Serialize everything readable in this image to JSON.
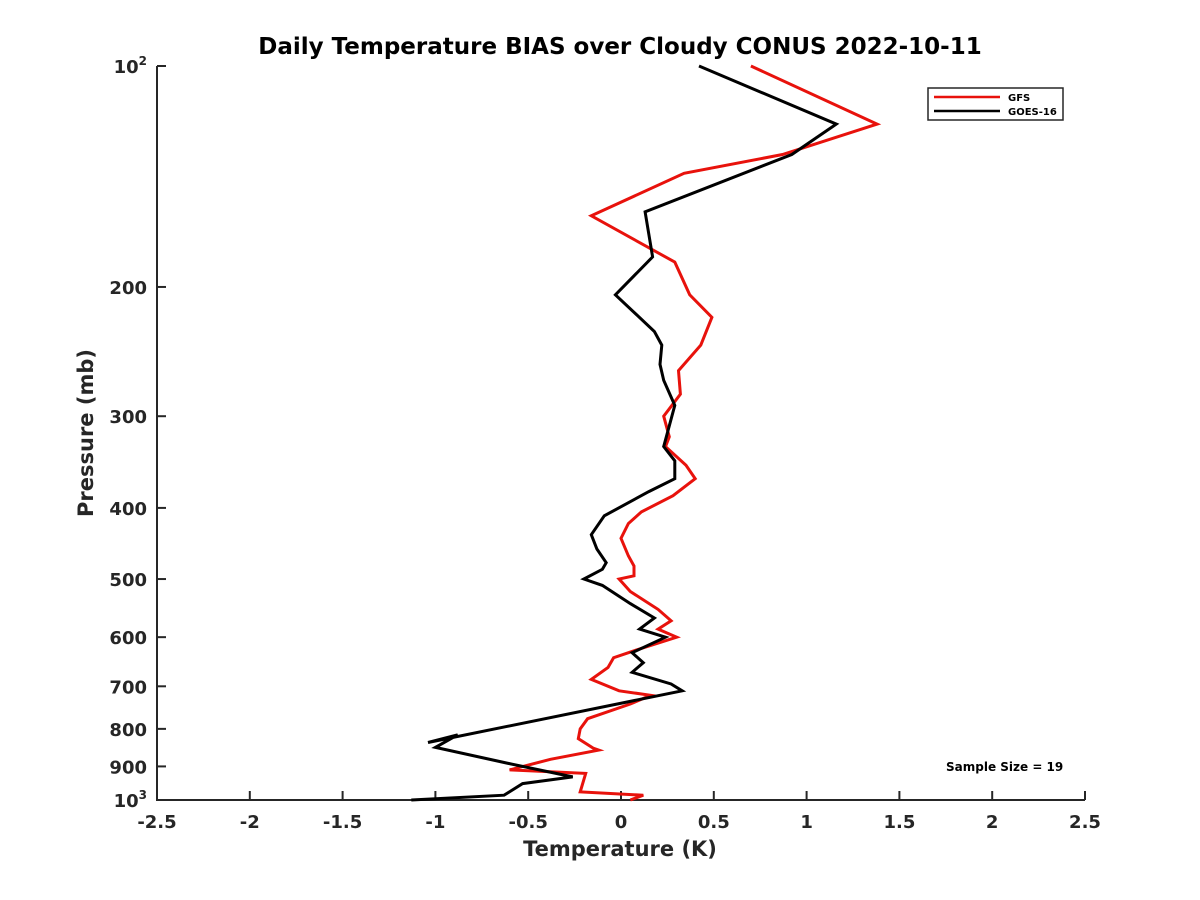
{
  "chart_data": {
    "type": "line",
    "title": "Daily Temperature BIAS over Cloudy CONUS 2022-10-11",
    "xlabel": "Temperature (K)",
    "ylabel": "Pressure (mb)",
    "xlim": [
      -2.5,
      2.5
    ],
    "ylim": [
      1000,
      100
    ],
    "y_scale": "log",
    "x_ticks": [
      "-2.5",
      "-2",
      "-1.5",
      "-1",
      "-0.5",
      "0",
      "0.5",
      "1",
      "1.5",
      "2",
      "2.5"
    ],
    "y_ticks": [
      {
        "value": 100,
        "base": "10",
        "exp": "2"
      },
      {
        "value": 200,
        "label": "200"
      },
      {
        "value": 300,
        "label": "300"
      },
      {
        "value": 400,
        "label": "400"
      },
      {
        "value": 500,
        "label": "500"
      },
      {
        "value": 600,
        "label": "600"
      },
      {
        "value": 700,
        "label": "700"
      },
      {
        "value": 800,
        "label": "800"
      },
      {
        "value": 900,
        "label": "900"
      },
      {
        "value": 1000,
        "base": "10",
        "exp": "3"
      }
    ],
    "legend_position": "top-right",
    "grid": false,
    "annotation": "Sample Size = 19",
    "series": [
      {
        "name": "GFS",
        "color": "#e8120c",
        "points": [
          {
            "x": 0.7,
            "y": 100
          },
          {
            "x": 1.38,
            "y": 120
          },
          {
            "x": 0.87,
            "y": 132
          },
          {
            "x": 0.34,
            "y": 140
          },
          {
            "x": -0.16,
            "y": 160
          },
          {
            "x": 0.29,
            "y": 185
          },
          {
            "x": 0.37,
            "y": 205
          },
          {
            "x": 0.49,
            "y": 220
          },
          {
            "x": 0.43,
            "y": 240
          },
          {
            "x": 0.31,
            "y": 260
          },
          {
            "x": 0.32,
            "y": 280
          },
          {
            "x": 0.23,
            "y": 300
          },
          {
            "x": 0.26,
            "y": 320
          },
          {
            "x": 0.24,
            "y": 330
          },
          {
            "x": 0.35,
            "y": 350
          },
          {
            "x": 0.4,
            "y": 365
          },
          {
            "x": 0.28,
            "y": 385
          },
          {
            "x": 0.11,
            "y": 405
          },
          {
            "x": 0.04,
            "y": 420
          },
          {
            "x": 0.0,
            "y": 440
          },
          {
            "x": 0.04,
            "y": 465
          },
          {
            "x": 0.07,
            "y": 480
          },
          {
            "x": 0.07,
            "y": 495
          },
          {
            "x": -0.01,
            "y": 500
          },
          {
            "x": 0.05,
            "y": 520
          },
          {
            "x": 0.2,
            "y": 550
          },
          {
            "x": 0.27,
            "y": 570
          },
          {
            "x": 0.2,
            "y": 585
          },
          {
            "x": 0.3,
            "y": 600
          },
          {
            "x": 0.08,
            "y": 625
          },
          {
            "x": -0.04,
            "y": 640
          },
          {
            "x": -0.07,
            "y": 660
          },
          {
            "x": -0.16,
            "y": 685
          },
          {
            "x": -0.01,
            "y": 710
          },
          {
            "x": 0.16,
            "y": 720
          },
          {
            "x": 0.05,
            "y": 740
          },
          {
            "x": -0.18,
            "y": 775
          },
          {
            "x": -0.22,
            "y": 800
          },
          {
            "x": -0.23,
            "y": 825
          },
          {
            "x": -0.15,
            "y": 850
          },
          {
            "x": -0.12,
            "y": 855
          },
          {
            "x": -0.38,
            "y": 880
          },
          {
            "x": -0.6,
            "y": 910
          },
          {
            "x": -0.19,
            "y": 920
          },
          {
            "x": -0.22,
            "y": 975
          },
          {
            "x": 0.12,
            "y": 985
          },
          {
            "x": 0.05,
            "y": 1000
          }
        ]
      },
      {
        "name": "GOES-16",
        "color": "#000000",
        "points": [
          {
            "x": 0.42,
            "y": 100
          },
          {
            "x": 1.16,
            "y": 120
          },
          {
            "x": 0.92,
            "y": 132
          },
          {
            "x": 0.13,
            "y": 158
          },
          {
            "x": 0.17,
            "y": 182
          },
          {
            "x": -0.03,
            "y": 205
          },
          {
            "x": 0.18,
            "y": 230
          },
          {
            "x": 0.22,
            "y": 240
          },
          {
            "x": 0.21,
            "y": 255
          },
          {
            "x": 0.23,
            "y": 268
          },
          {
            "x": 0.29,
            "y": 290
          },
          {
            "x": 0.23,
            "y": 330
          },
          {
            "x": 0.29,
            "y": 345
          },
          {
            "x": 0.29,
            "y": 365
          },
          {
            "x": 0.15,
            "y": 380
          },
          {
            "x": -0.09,
            "y": 410
          },
          {
            "x": -0.16,
            "y": 435
          },
          {
            "x": -0.13,
            "y": 455
          },
          {
            "x": -0.08,
            "y": 475
          },
          {
            "x": -0.1,
            "y": 485
          },
          {
            "x": -0.2,
            "y": 500
          },
          {
            "x": -0.1,
            "y": 510
          },
          {
            "x": 0.05,
            "y": 540
          },
          {
            "x": 0.18,
            "y": 565
          },
          {
            "x": 0.1,
            "y": 585
          },
          {
            "x": 0.24,
            "y": 600
          },
          {
            "x": 0.06,
            "y": 630
          },
          {
            "x": 0.12,
            "y": 650
          },
          {
            "x": 0.06,
            "y": 670
          },
          {
            "x": 0.27,
            "y": 695
          },
          {
            "x": 0.33,
            "y": 710
          },
          {
            "x": -1.04,
            "y": 835
          },
          {
            "x": -0.88,
            "y": 815
          },
          {
            "x": -1.0,
            "y": 848
          },
          {
            "x": -0.62,
            "y": 890
          },
          {
            "x": -0.26,
            "y": 930
          },
          {
            "x": -0.53,
            "y": 950
          },
          {
            "x": -0.63,
            "y": 985
          },
          {
            "x": -1.13,
            "y": 1000
          }
        ]
      }
    ]
  }
}
